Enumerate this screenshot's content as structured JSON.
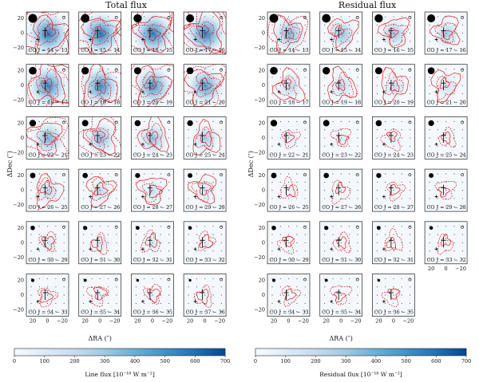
{
  "chart_data": {
    "type": "heatmap",
    "description_panels": [
      {
        "title": "Total flux",
        "colorbar_label": "Line flux [10⁻¹⁸ W m⁻²]",
        "colorbar_ticks": [
          "0",
          "100",
          "200",
          "300",
          "400",
          "500",
          "600",
          "700"
        ],
        "colorbar_range": [
          0,
          700
        ],
        "xlabel": "ΔRA (″)",
        "ylabel": "ΔDec (″)",
        "x_ticks": [
          "20",
          "0",
          "−20"
        ],
        "y_ticks": [
          "20",
          "0",
          "−20"
        ],
        "transitions": [
          "CO J = 14 − 13",
          "CO J = 15 − 14",
          "CO J = 16 − 15",
          "CO J = 17 − 16",
          "CO J = 18 − 17",
          "CO J = 19 − 18",
          "CO J = 20 − 19",
          "CO J = 21 − 20",
          "CO J = 22 − 21",
          "CO J = 23 − 22",
          "CO J = 24 − 23",
          "CO J = 25 − 24",
          "CO J = 26 − 25",
          "CO J = 27 − 26",
          "CO J = 28 − 27",
          "CO J = 29 − 28",
          "CO J = 30 − 29",
          "CO J = 31 − 30",
          "CO J = 32 − 31",
          "CO J = 33 − 32",
          "CO J = 34 − 33",
          "CO J = 35 − 34",
          "CO J = 36 − 35",
          "CO J = 37 − 36"
        ],
        "peak_intensity": [
          0.95,
          0.95,
          0.92,
          0.9,
          0.85,
          0.82,
          0.78,
          0.72,
          0.55,
          0.5,
          0.45,
          0.35,
          0.28,
          0.24,
          0.2,
          0.18,
          0.15,
          0.13,
          0.12,
          0.1,
          0.08,
          0.07,
          0.06,
          0.05
        ]
      },
      {
        "title": "Residual flux",
        "colorbar_label": "Residual flux [10⁻¹⁸ W m⁻²]",
        "colorbar_ticks": [
          "0",
          "100",
          "200",
          "300",
          "400",
          "500",
          "600",
          "700"
        ],
        "colorbar_range": [
          0,
          700
        ],
        "xlabel": "ΔRA (″)",
        "ylabel": "ΔDec (″)",
        "x_ticks": [
          "20",
          "0",
          "−20"
        ],
        "y_ticks": [
          "20",
          "0",
          "−20"
        ],
        "transitions": [
          "CO J = 14 − 13",
          "CO J = 15 − 14",
          "CO J = 16 − 15",
          "CO J = 17 − 16",
          "CO J = 18 − 17",
          "CO J = 19 − 18",
          "CO J = 20 − 19",
          "CO J = 21 − 20",
          "CO J = 22 − 21",
          "CO J = 23 − 22",
          "CO J = 24 − 23",
          "CO J = 25 − 24",
          "CO J = 26 − 25",
          "CO J = 27 − 26",
          "CO J = 28 − 27",
          "CO J = 29 − 28",
          "CO J = 30 − 29",
          "CO J = 31 − 30",
          "CO J = 32 − 31",
          "CO J = 33 − 32",
          "CO J = 34 − 33",
          "CO J = 35 − 34",
          "CO J = 36 − 35"
        ],
        "peak_intensity": [
          0.55,
          0.45,
          0.4,
          0.35,
          0.3,
          0.28,
          0.25,
          0.2,
          0.12,
          0.1,
          0.08,
          0.07,
          0.06,
          0.05,
          0.04,
          0.04,
          0.03,
          0.03,
          0.03,
          0.02,
          0.02,
          0.02,
          0.02
        ]
      }
    ],
    "colormap": [
      "#f7fbff",
      "#deebf7",
      "#c6dbef",
      "#9ecae1",
      "#6baed6",
      "#4292c6",
      "#2171b5",
      "#084594"
    ],
    "contour_color": "#e31a1c"
  }
}
